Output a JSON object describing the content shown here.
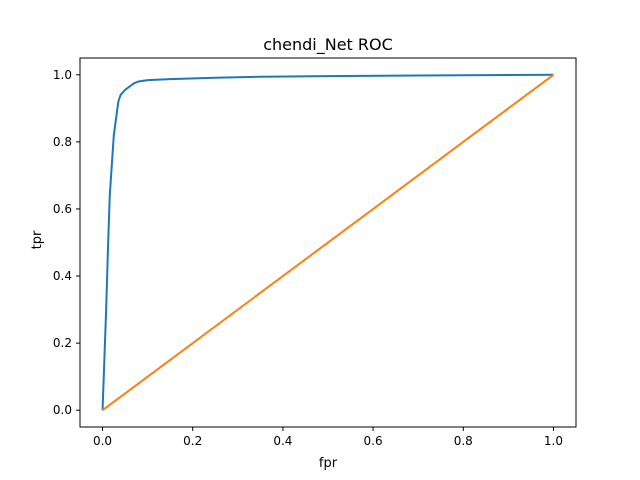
{
  "chart_data": {
    "type": "line",
    "title": "chendi_Net ROC",
    "xlabel": "fpr",
    "ylabel": "tpr",
    "xlim": [
      -0.05,
      1.05
    ],
    "ylim": [
      -0.05,
      1.05
    ],
    "xticks": [
      0.0,
      0.2,
      0.4,
      0.6,
      0.8,
      1.0
    ],
    "yticks": [
      0.0,
      0.2,
      0.4,
      0.6,
      0.8,
      1.0
    ],
    "x_tick_labels": [
      "0.0",
      "0.2",
      "0.4",
      "0.6",
      "0.8",
      "1.0"
    ],
    "y_tick_labels": [
      "0.0",
      "0.2",
      "0.4",
      "0.6",
      "0.8",
      "1.0"
    ],
    "grid": false,
    "series": [
      {
        "color": "#1f77b4",
        "x": [
          0.0,
          0.004,
          0.008,
          0.012,
          0.016,
          0.02,
          0.025,
          0.03,
          0.035,
          0.04,
          0.05,
          0.06,
          0.07,
          0.08,
          0.1,
          0.15,
          0.25,
          0.35,
          0.5,
          0.7,
          1.0
        ],
        "y": [
          0.0,
          0.15,
          0.3,
          0.48,
          0.64,
          0.72,
          0.82,
          0.87,
          0.92,
          0.94,
          0.955,
          0.965,
          0.975,
          0.98,
          0.984,
          0.987,
          0.991,
          0.994,
          0.996,
          0.998,
          1.0
        ]
      },
      {
        "color": "#ff7f0e",
        "x": [
          0.0,
          1.0
        ],
        "y": [
          0.0,
          1.0
        ]
      }
    ]
  }
}
